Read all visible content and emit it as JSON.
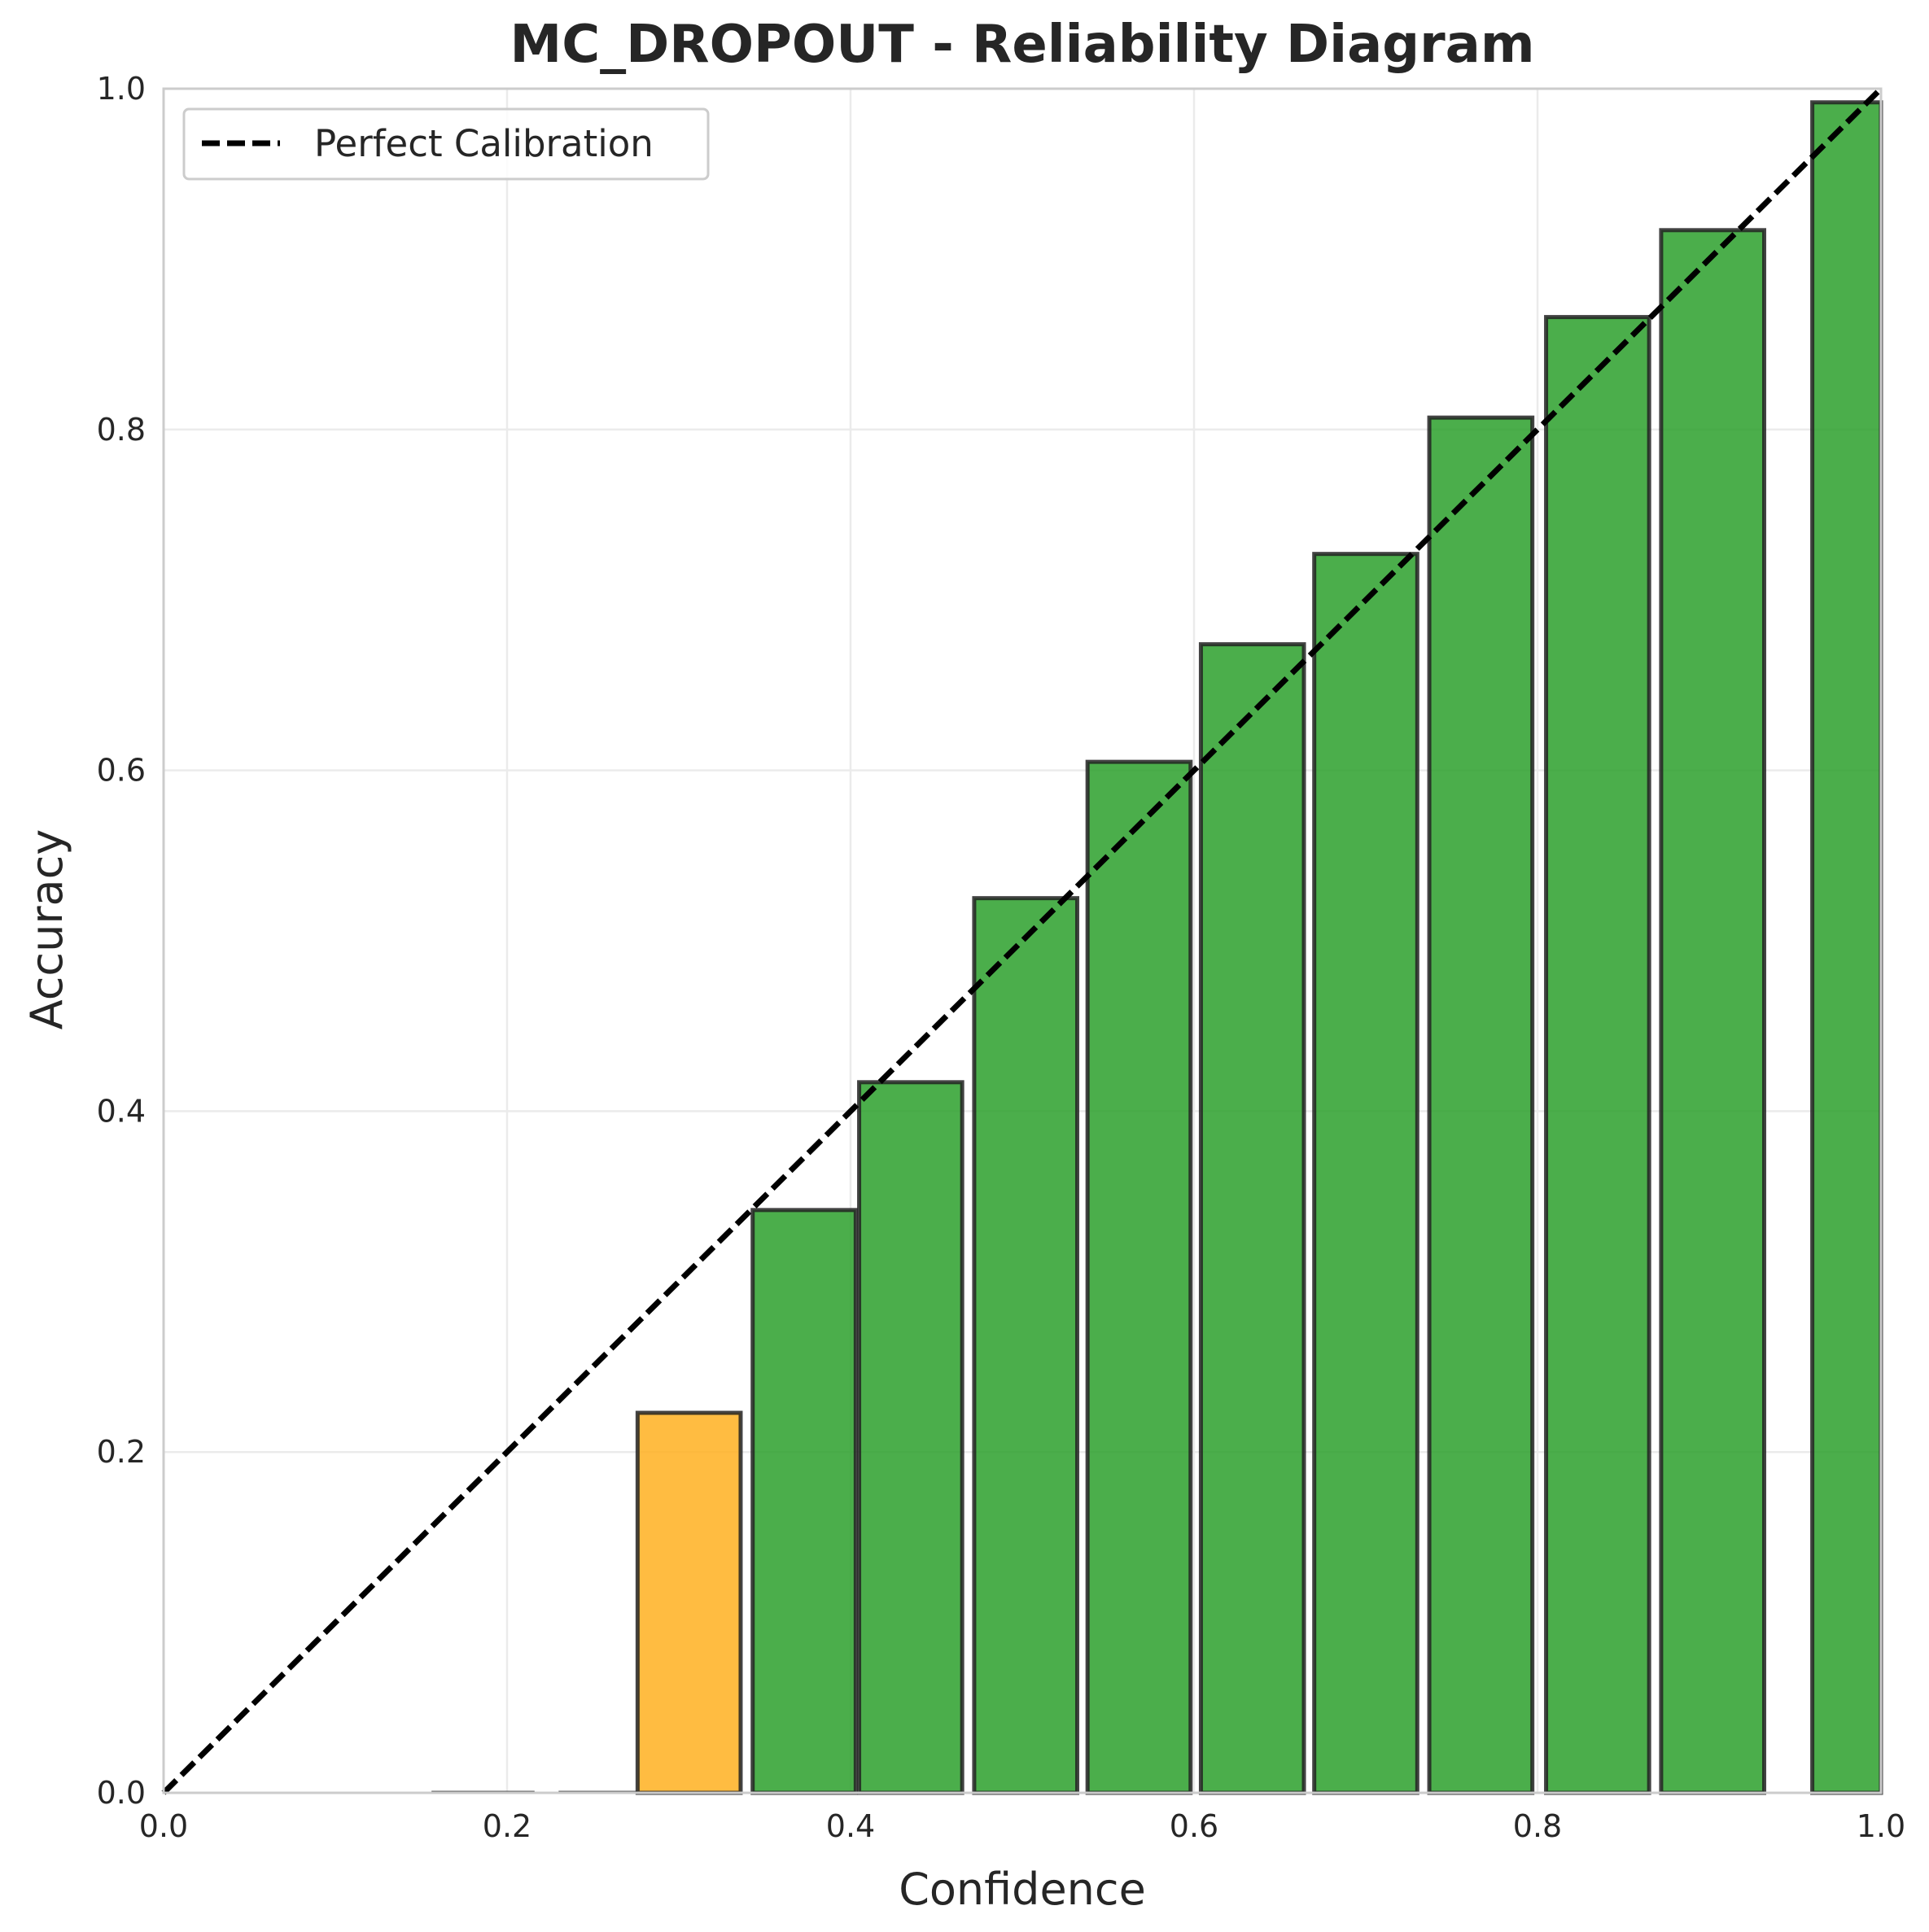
{
  "chart_data": {
    "type": "bar",
    "title": "MC_DROPOUT - Reliability Diagram",
    "xlabel": "Confidence",
    "ylabel": "Accuracy",
    "xlim": [
      0.0,
      1.0
    ],
    "ylim": [
      0.0,
      1.0
    ],
    "xticks": [
      "0.0",
      "0.2",
      "0.4",
      "0.6",
      "0.8",
      "1.0"
    ],
    "yticks": [
      "0.0",
      "0.2",
      "0.4",
      "0.6",
      "0.8",
      "1.0"
    ],
    "grid": true,
    "legend": {
      "placement": "top-left",
      "entries": [
        "Perfect Calibration"
      ]
    },
    "reference_line": {
      "name": "Perfect Calibration",
      "style": "dashed",
      "color": "#000000",
      "points": [
        [
          0.0,
          0.0
        ],
        [
          1.0,
          1.0
        ]
      ]
    },
    "bars": [
      {
        "x_start": 0.156,
        "x_end": 0.216,
        "accuracy": 0.0,
        "color": "#2ca02c"
      },
      {
        "x_start": 0.23,
        "x_end": 0.276,
        "accuracy": 0.0,
        "color": "#2ca02c"
      },
      {
        "x_start": 0.276,
        "x_end": 0.336,
        "accuracy": 0.223,
        "color": "#ffb020"
      },
      {
        "x_start": 0.343,
        "x_end": 0.403,
        "accuracy": 0.342,
        "color": "#2ca02c"
      },
      {
        "x_start": 0.405,
        "x_end": 0.465,
        "accuracy": 0.417,
        "color": "#2ca02c"
      },
      {
        "x_start": 0.472,
        "x_end": 0.532,
        "accuracy": 0.525,
        "color": "#2ca02c"
      },
      {
        "x_start": 0.538,
        "x_end": 0.598,
        "accuracy": 0.605,
        "color": "#2ca02c"
      },
      {
        "x_start": 0.604,
        "x_end": 0.664,
        "accuracy": 0.674,
        "color": "#2ca02c"
      },
      {
        "x_start": 0.67,
        "x_end": 0.73,
        "accuracy": 0.727,
        "color": "#2ca02c"
      },
      {
        "x_start": 0.737,
        "x_end": 0.797,
        "accuracy": 0.807,
        "color": "#2ca02c"
      },
      {
        "x_start": 0.805,
        "x_end": 0.865,
        "accuracy": 0.866,
        "color": "#2ca02c"
      },
      {
        "x_start": 0.872,
        "x_end": 0.932,
        "accuracy": 0.917,
        "color": "#2ca02c"
      },
      {
        "x_start": 0.96,
        "x_end": 1.0,
        "accuracy": 0.992,
        "color": "#2ca02c"
      }
    ]
  },
  "colors": {
    "calibrated": "#2ca02c",
    "underconfident": "#ffb020",
    "bar_edge": "#222222",
    "grid": "#ebebeb",
    "axes_edge": "#cccccc"
  }
}
